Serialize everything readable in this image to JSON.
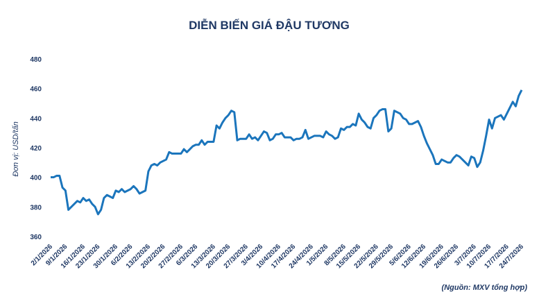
{
  "chart_data": {
    "type": "line",
    "title": "DIỄN BIẾN GIÁ ĐẬU TƯƠNG",
    "y_label": "Đơn vị: USD/tấn",
    "source": "(Nguồn: MXV tổng hợp)",
    "color": "#1b75bc",
    "ylim": [
      360,
      480
    ],
    "yticks": [
      360,
      380,
      400,
      420,
      440,
      460,
      480
    ],
    "grid": false,
    "categories": [
      "2/1/2026",
      null,
      null,
      null,
      null,
      "9/1/2026",
      null,
      null,
      null,
      null,
      null,
      "16/1/2026",
      null,
      null,
      null,
      null,
      "23/1/2026",
      null,
      null,
      null,
      null,
      null,
      "30/1/2026",
      null,
      null,
      null,
      null,
      "6/2/2026",
      null,
      null,
      null,
      null,
      null,
      "13/2/2026",
      null,
      null,
      null,
      null,
      "20/2/2026",
      null,
      null,
      null,
      null,
      null,
      "27/2/2026",
      null,
      null,
      null,
      null,
      "6/3/2026",
      null,
      null,
      null,
      null,
      null,
      "13/3/2026",
      null,
      null,
      null,
      null,
      "20/3/2026",
      null,
      null,
      null,
      null,
      null,
      "27/3/2026",
      null,
      null,
      null,
      null,
      "3/4/2026",
      null,
      null,
      null,
      null,
      null,
      "10/4/2026",
      null,
      null,
      null,
      null,
      "17/4/2026",
      null,
      null,
      null,
      null,
      null,
      "24/4/2026",
      null,
      null,
      null,
      null,
      "1/5/2026",
      null,
      null,
      null,
      null,
      null,
      "8/5/2026",
      null,
      null,
      null,
      null,
      "15/5/2026",
      null,
      null,
      null,
      null,
      null,
      "22/5/2026",
      null,
      null,
      null,
      null,
      "29/5/2026",
      null,
      null,
      null,
      null,
      null,
      "5/6/2026",
      null,
      null,
      null,
      null,
      "12/6/2026",
      null,
      null,
      null,
      null,
      null,
      "19/6/2026",
      null,
      null,
      null,
      null,
      "26/6/2026",
      null,
      null,
      null,
      null,
      null,
      "3/7/2026",
      null,
      null,
      null,
      null,
      "10/7/2026",
      null,
      null,
      null,
      null,
      null,
      "17/7/2026",
      null,
      null,
      null,
      null,
      "24/7/2026"
    ],
    "values": [
      400,
      400,
      401,
      401,
      393,
      391,
      378,
      380,
      382,
      384,
      383,
      386,
      384,
      385,
      382,
      380,
      375,
      378,
      386,
      388,
      387,
      386,
      391,
      390,
      392,
      390,
      391,
      392,
      394,
      392,
      389,
      390,
      391,
      404,
      408,
      409,
      408,
      410,
      411,
      412,
      417,
      416,
      416,
      416,
      416,
      419,
      417,
      419,
      421,
      422,
      422,
      425,
      422,
      424,
      424,
      424,
      435,
      433,
      437,
      440,
      442,
      445,
      444,
      425,
      426,
      426,
      426,
      429,
      426,
      427,
      425,
      428,
      431,
      430,
      425,
      426,
      429,
      429,
      430,
      427,
      427,
      427,
      425,
      426,
      426,
      427,
      432,
      426,
      427,
      428,
      428,
      428,
      427,
      431,
      429,
      428,
      426,
      427,
      433,
      432,
      434,
      434,
      436,
      435,
      443,
      439,
      437,
      434,
      433,
      440,
      442,
      445,
      446,
      446,
      431,
      433,
      445,
      444,
      443,
      440,
      439,
      436,
      436,
      437,
      438,
      434,
      428,
      423,
      419,
      415,
      409,
      409,
      412,
      411,
      410,
      410,
      413,
      415,
      414,
      412,
      410,
      408,
      414,
      413,
      407,
      410,
      418,
      428,
      439,
      433,
      440,
      441,
      442,
      439,
      443,
      447,
      451,
      448,
      455,
      459
    ]
  }
}
